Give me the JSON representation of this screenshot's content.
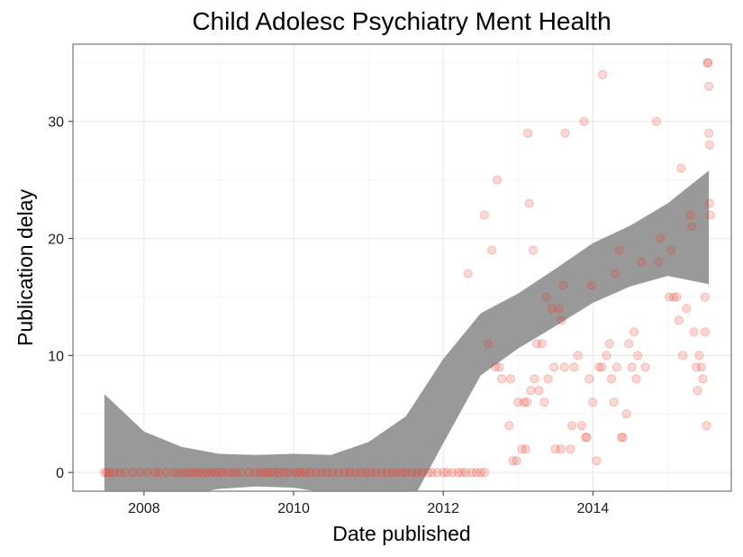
{
  "chart_data": {
    "type": "scatter",
    "title": "Child Adolesc Psychiatry Ment Health",
    "xlabel": "Date published",
    "ylabel": "Publication delay",
    "xlim": [
      2007.05,
      2015.85
    ],
    "ylim": [
      -1.6,
      36.6
    ],
    "x_ticks": [
      2008,
      2010,
      2012,
      2014
    ],
    "x_tick_labels": [
      "2008",
      "2010",
      "2012",
      "2014"
    ],
    "y_ticks": [
      0,
      10,
      20,
      30
    ],
    "y_tick_labels": [
      "0",
      "10",
      "20",
      "30"
    ],
    "grid": true,
    "point_color": "#ef3b2c",
    "ribbon_color": "#999999",
    "points": [
      [
        2007.47,
        0
      ],
      [
        2007.5,
        0
      ],
      [
        2007.55,
        0
      ],
      [
        2007.6,
        0
      ],
      [
        2007.68,
        0
      ],
      [
        2007.75,
        0
      ],
      [
        2007.85,
        0
      ],
      [
        2007.95,
        0
      ],
      [
        2008.05,
        0
      ],
      [
        2008.15,
        0
      ],
      [
        2008.2,
        0
      ],
      [
        2008.3,
        0
      ],
      [
        2008.4,
        0
      ],
      [
        2008.45,
        0
      ],
      [
        2008.52,
        0
      ],
      [
        2008.57,
        0
      ],
      [
        2008.62,
        0
      ],
      [
        2008.68,
        0
      ],
      [
        2008.73,
        0
      ],
      [
        2008.78,
        0
      ],
      [
        2008.84,
        0
      ],
      [
        2008.9,
        0
      ],
      [
        2008.95,
        0
      ],
      [
        2009.0,
        0
      ],
      [
        2009.05,
        0
      ],
      [
        2009.12,
        0
      ],
      [
        2009.18,
        0
      ],
      [
        2009.23,
        0
      ],
      [
        2009.3,
        0
      ],
      [
        2009.4,
        0
      ],
      [
        2009.48,
        0
      ],
      [
        2009.55,
        0
      ],
      [
        2009.6,
        0
      ],
      [
        2009.65,
        0
      ],
      [
        2009.7,
        0
      ],
      [
        2009.75,
        0
      ],
      [
        2009.8,
        0
      ],
      [
        2009.87,
        0
      ],
      [
        2009.92,
        0
      ],
      [
        2010.0,
        0
      ],
      [
        2010.05,
        0
      ],
      [
        2010.1,
        0
      ],
      [
        2010.16,
        0
      ],
      [
        2010.22,
        0
      ],
      [
        2010.3,
        0
      ],
      [
        2010.37,
        0
      ],
      [
        2010.45,
        0
      ],
      [
        2010.52,
        0
      ],
      [
        2010.6,
        0
      ],
      [
        2010.68,
        0
      ],
      [
        2010.75,
        0
      ],
      [
        2010.82,
        0
      ],
      [
        2010.9,
        0
      ],
      [
        2010.97,
        0
      ],
      [
        2011.03,
        0
      ],
      [
        2011.1,
        0
      ],
      [
        2011.18,
        0
      ],
      [
        2011.25,
        0
      ],
      [
        2011.32,
        0
      ],
      [
        2011.38,
        0
      ],
      [
        2011.45,
        0
      ],
      [
        2011.5,
        0
      ],
      [
        2011.58,
        0
      ],
      [
        2011.65,
        0
      ],
      [
        2011.72,
        0
      ],
      [
        2011.8,
        0
      ],
      [
        2011.85,
        0
      ],
      [
        2011.92,
        0
      ],
      [
        2012.0,
        0
      ],
      [
        2012.05,
        0
      ],
      [
        2012.12,
        0
      ],
      [
        2012.2,
        0
      ],
      [
        2012.25,
        0
      ],
      [
        2012.3,
        0
      ],
      [
        2012.38,
        0
      ],
      [
        2012.44,
        0
      ],
      [
        2012.5,
        0
      ],
      [
        2012.55,
        0
      ],
      [
        2012.33,
        17
      ],
      [
        2012.55,
        22
      ],
      [
        2012.6,
        11
      ],
      [
        2012.65,
        19
      ],
      [
        2012.7,
        9
      ],
      [
        2012.72,
        25
      ],
      [
        2012.75,
        9
      ],
      [
        2012.78,
        8
      ],
      [
        2012.88,
        4
      ],
      [
        2012.9,
        8
      ],
      [
        2012.93,
        1
      ],
      [
        2012.98,
        1
      ],
      [
        2013.0,
        6
      ],
      [
        2013.05,
        2
      ],
      [
        2013.08,
        6
      ],
      [
        2013.1,
        2
      ],
      [
        2013.12,
        6
      ],
      [
        2013.13,
        29
      ],
      [
        2013.15,
        23
      ],
      [
        2013.17,
        7
      ],
      [
        2013.2,
        19
      ],
      [
        2013.22,
        8
      ],
      [
        2013.25,
        11
      ],
      [
        2013.28,
        7
      ],
      [
        2013.32,
        11
      ],
      [
        2013.35,
        6
      ],
      [
        2013.38,
        15
      ],
      [
        2013.4,
        8
      ],
      [
        2013.45,
        14
      ],
      [
        2013.48,
        9
      ],
      [
        2013.5,
        2
      ],
      [
        2013.55,
        14
      ],
      [
        2013.57,
        2
      ],
      [
        2013.58,
        13
      ],
      [
        2013.6,
        16
      ],
      [
        2013.62,
        9
      ],
      [
        2013.63,
        29
      ],
      [
        2013.7,
        2
      ],
      [
        2013.72,
        4
      ],
      [
        2013.75,
        9
      ],
      [
        2013.8,
        10
      ],
      [
        2013.85,
        4
      ],
      [
        2013.88,
        30
      ],
      [
        2013.9,
        3
      ],
      [
        2013.92,
        3
      ],
      [
        2013.95,
        8
      ],
      [
        2013.98,
        16
      ],
      [
        2014.0,
        6
      ],
      [
        2014.05,
        1
      ],
      [
        2014.08,
        9
      ],
      [
        2014.12,
        9
      ],
      [
        2014.13,
        34
      ],
      [
        2014.18,
        10
      ],
      [
        2014.22,
        11
      ],
      [
        2014.25,
        8
      ],
      [
        2014.28,
        6
      ],
      [
        2014.3,
        17
      ],
      [
        2014.32,
        9
      ],
      [
        2014.35,
        19
      ],
      [
        2014.38,
        3
      ],
      [
        2014.4,
        3
      ],
      [
        2014.45,
        5
      ],
      [
        2014.48,
        11
      ],
      [
        2014.52,
        9
      ],
      [
        2014.55,
        12
      ],
      [
        2014.58,
        8
      ],
      [
        2014.6,
        10
      ],
      [
        2014.65,
        18
      ],
      [
        2014.7,
        9
      ],
      [
        2014.85,
        30
      ],
      [
        2014.88,
        18
      ],
      [
        2014.9,
        20
      ],
      [
        2015.02,
        15
      ],
      [
        2015.05,
        19
      ],
      [
        2015.08,
        15
      ],
      [
        2015.12,
        15
      ],
      [
        2015.15,
        13
      ],
      [
        2015.18,
        26
      ],
      [
        2015.2,
        10
      ],
      [
        2015.25,
        14
      ],
      [
        2015.3,
        22
      ],
      [
        2015.32,
        21
      ],
      [
        2015.35,
        12
      ],
      [
        2015.38,
        9
      ],
      [
        2015.4,
        7
      ],
      [
        2015.42,
        10
      ],
      [
        2015.45,
        9
      ],
      [
        2015.47,
        8
      ],
      [
        2015.5,
        12
      ],
      [
        2015.5,
        15
      ],
      [
        2015.52,
        4
      ],
      [
        2015.53,
        35
      ],
      [
        2015.54,
        35
      ],
      [
        2015.55,
        33
      ],
      [
        2015.55,
        29
      ],
      [
        2015.56,
        28
      ],
      [
        2015.56,
        23
      ],
      [
        2015.57,
        22
      ]
    ],
    "smooth_fit": {
      "x": [
        2007.47,
        2008.0,
        2008.5,
        2009.0,
        2009.5,
        2010.0,
        2010.5,
        2011.0,
        2011.5,
        2012.0,
        2012.5,
        2013.0,
        2013.5,
        2014.0,
        2014.5,
        2015.0,
        2015.55
      ],
      "ymin": [
        -5.0,
        -3.0,
        -2.0,
        -1.4,
        -1.2,
        -1.3,
        -1.8,
        -3.0,
        -3.4,
        2.5,
        8.3,
        10.6,
        12.5,
        14.5,
        15.9,
        16.8,
        16.1
      ],
      "ymax": [
        6.7,
        3.5,
        2.2,
        1.6,
        1.5,
        1.6,
        1.5,
        2.6,
        4.8,
        9.7,
        13.6,
        15.3,
        17.4,
        19.6,
        21.1,
        23.0,
        25.8
      ]
    }
  }
}
